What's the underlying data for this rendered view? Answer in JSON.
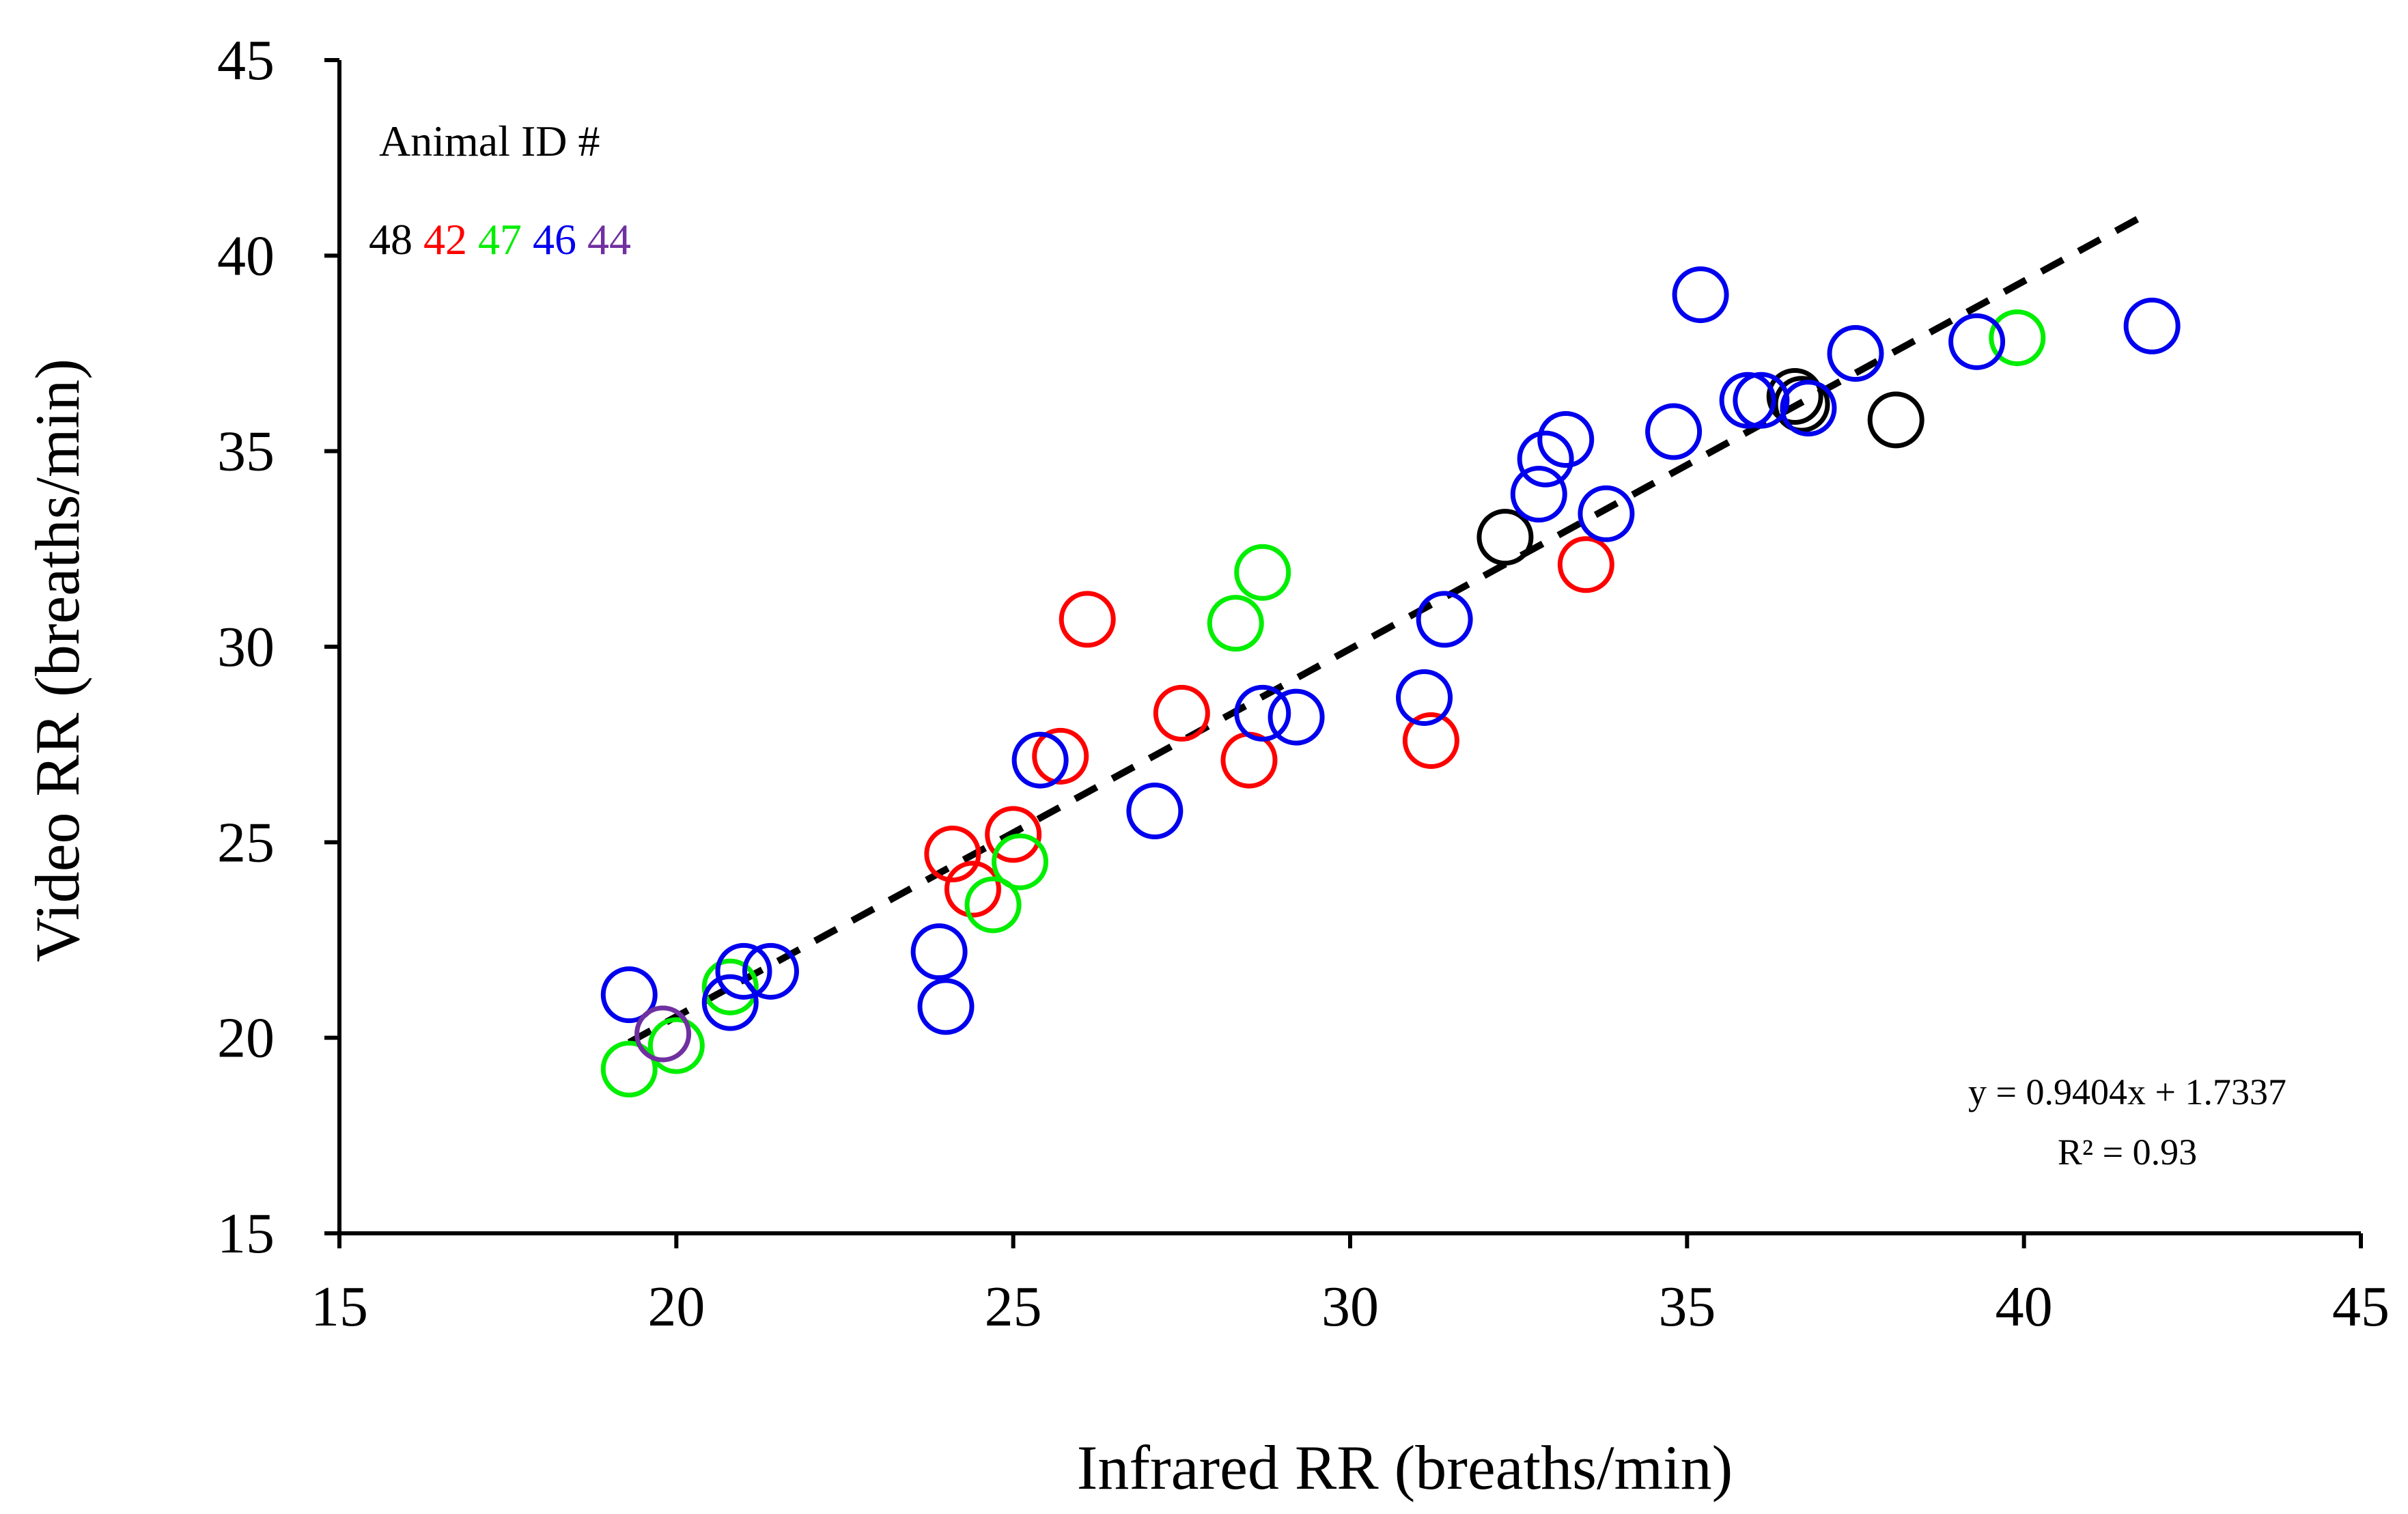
{
  "chart_data": {
    "type": "scatter",
    "xlabel": "Infrared RR (breaths/min)",
    "ylabel": "Video RR (breaths/min)",
    "xlim": [
      15,
      45
    ],
    "ylim": [
      15,
      45
    ],
    "xticks": [
      "15",
      "20",
      "25",
      "30",
      "35",
      "40",
      "45"
    ],
    "yticks": [
      "15",
      "20",
      "25",
      "30",
      "35",
      "40",
      "45"
    ],
    "legend": {
      "title": "Animal ID #",
      "position": "top-left",
      "entries": [
        {
          "label": "48",
          "color": "#000000"
        },
        {
          "label": "42",
          "color": "#ff0000"
        },
        {
          "label": "47",
          "color": "#00ee00"
        },
        {
          "label": "46",
          "color": "#0000ee"
        },
        {
          "label": "44",
          "color": "#7030a0"
        }
      ]
    },
    "series": [
      {
        "name": "48",
        "color": "#000000",
        "points": [
          [
            32.3,
            32.8
          ],
          [
            36.6,
            36.4
          ],
          [
            36.7,
            36.2
          ],
          [
            38.1,
            35.8
          ]
        ]
      },
      {
        "name": "42",
        "color": "#ff0000",
        "points": [
          [
            24.1,
            24.7
          ],
          [
            24.4,
            23.8
          ],
          [
            25.0,
            25.2
          ],
          [
            25.7,
            27.2
          ],
          [
            26.1,
            30.7
          ],
          [
            27.5,
            28.3
          ],
          [
            28.5,
            27.1
          ],
          [
            31.2,
            27.6
          ],
          [
            33.5,
            32.1
          ]
        ]
      },
      {
        "name": "47",
        "color": "#00ee00",
        "points": [
          [
            19.3,
            19.2
          ],
          [
            20.0,
            19.8
          ],
          [
            20.8,
            21.3
          ],
          [
            24.7,
            23.4
          ],
          [
            25.1,
            24.5
          ],
          [
            28.3,
            30.6
          ],
          [
            28.7,
            31.9
          ],
          [
            39.9,
            37.9
          ]
        ]
      },
      {
        "name": "46",
        "color": "#0000ee",
        "points": [
          [
            19.3,
            21.1
          ],
          [
            20.8,
            20.9
          ],
          [
            21.0,
            21.7
          ],
          [
            21.4,
            21.7
          ],
          [
            23.9,
            22.2
          ],
          [
            24.0,
            20.8
          ],
          [
            25.4,
            27.1
          ],
          [
            27.1,
            25.8
          ],
          [
            28.7,
            28.3
          ],
          [
            29.2,
            28.2
          ],
          [
            31.1,
            28.7
          ],
          [
            31.4,
            30.7
          ],
          [
            32.8,
            33.9
          ],
          [
            32.9,
            34.8
          ],
          [
            33.2,
            35.3
          ],
          [
            33.8,
            33.4
          ],
          [
            34.8,
            35.5
          ],
          [
            35.2,
            39.0
          ],
          [
            35.9,
            36.3
          ],
          [
            36.1,
            36.3
          ],
          [
            36.8,
            36.1
          ],
          [
            37.5,
            37.5
          ],
          [
            39.3,
            37.8
          ],
          [
            41.9,
            38.2
          ]
        ]
      },
      {
        "name": "44",
        "color": "#7030a0",
        "points": [
          [
            19.8,
            20.1
          ]
        ]
      }
    ],
    "trendline": {
      "type": "linear",
      "slope": 0.9404,
      "intercept": 1.7337,
      "x_range": [
        19.3,
        41.8
      ],
      "equation": "y = 0.9404x + 1.7337",
      "r_squared": "R² = 0.93"
    }
  }
}
